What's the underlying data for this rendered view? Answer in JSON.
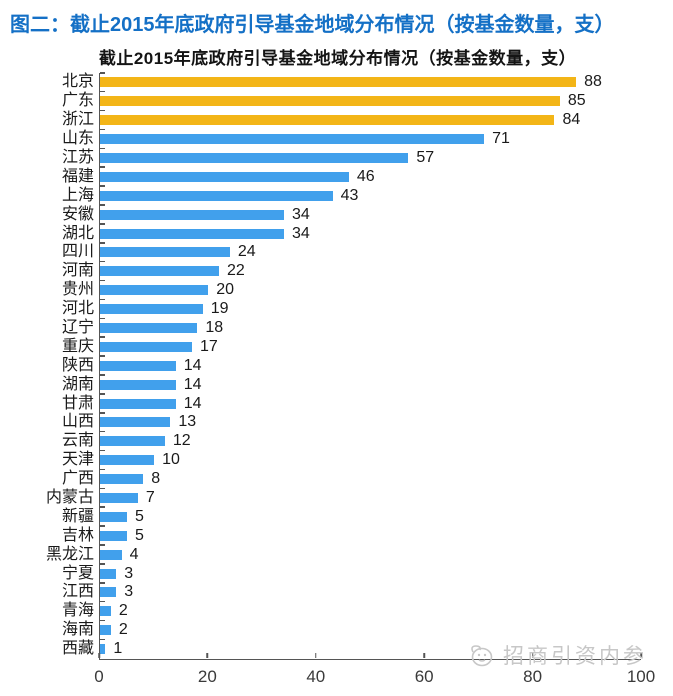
{
  "page": {
    "caption": "图二：截止2015年底政府引导基金地域分布情况（按基金数量，支）"
  },
  "chart_data": {
    "type": "bar",
    "orientation": "horizontal",
    "title": "截止2015年底政府引导基金地域分布情况（按基金数量，支）",
    "categories": [
      "北京",
      "广东",
      "浙江",
      "山东",
      "江苏",
      "福建",
      "上海",
      "安徽",
      "湖北",
      "四川",
      "河南",
      "贵州",
      "河北",
      "辽宁",
      "重庆",
      "陕西",
      "湖南",
      "甘肃",
      "山西",
      "云南",
      "天津",
      "广西",
      "内蒙古",
      "新疆",
      "吉林",
      "黑龙江",
      "宁夏",
      "江西",
      "青海",
      "海南",
      "西藏"
    ],
    "values": [
      88,
      85,
      84,
      71,
      57,
      46,
      43,
      34,
      34,
      24,
      22,
      20,
      19,
      18,
      17,
      14,
      14,
      14,
      13,
      12,
      10,
      8,
      7,
      5,
      5,
      4,
      3,
      3,
      2,
      2,
      1
    ],
    "xlabel": "",
    "ylabel": "",
    "xlim": [
      0,
      100
    ],
    "x_ticks": [
      0,
      20,
      40,
      60,
      80,
      100
    ],
    "grid": false,
    "data_labels": true,
    "highlight_count": 3,
    "colors": {
      "highlight": "#F3B517",
      "default": "#41A0EC",
      "axis": "#555555",
      "caption_text": "#1470C6",
      "watermark_text": "#C7C7C7"
    },
    "watermark": "招商引资内参"
  }
}
